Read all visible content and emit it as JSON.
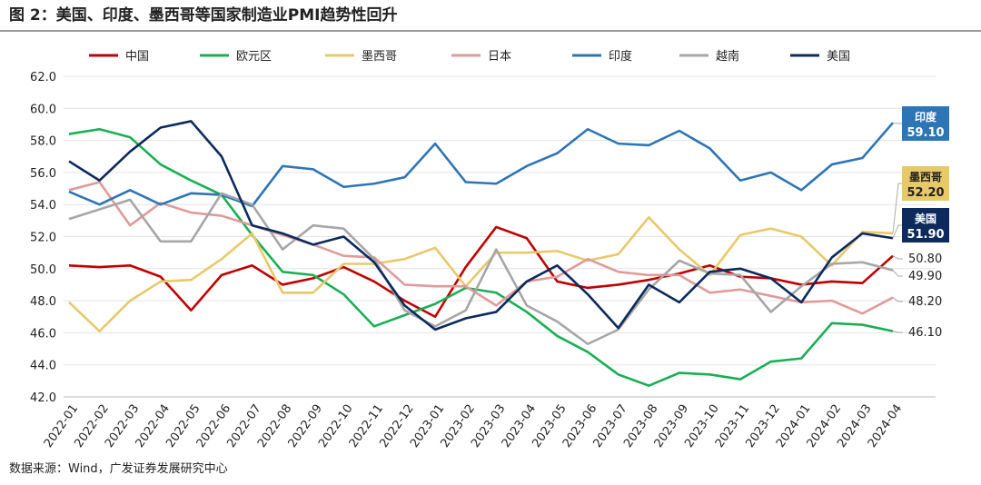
{
  "chart_data": {
    "type": "line",
    "title": "图 2：美国、印度、墨西哥等国家制造业PMI趋势性回升",
    "source": "数据来源：Wind，广发证券发展研究中心",
    "categories": [
      "2022-01",
      "2022-02",
      "2022-03",
      "2022-04",
      "2022-05",
      "2022-06",
      "2022-07",
      "2022-08",
      "2022-09",
      "2022-10",
      "2022-11",
      "2022-12",
      "2023-01",
      "2023-02",
      "2023-03",
      "2023-04",
      "2023-05",
      "2023-06",
      "2023-07",
      "2023-08",
      "2023-09",
      "2023-10",
      "2023-11",
      "2023-12",
      "2024-01",
      "2024-02",
      "2024-03",
      "2024-04"
    ],
    "ylim": [
      42,
      62
    ],
    "yticks": [
      {
        "value": 42,
        "label": "42.0"
      },
      {
        "value": 44,
        "label": "44.0"
      },
      {
        "value": 46,
        "label": "46.0"
      },
      {
        "value": 48,
        "label": "48.0"
      },
      {
        "value": 50,
        "label": "50.0"
      },
      {
        "value": 52,
        "label": "52.0"
      },
      {
        "value": 54,
        "label": "54.0"
      },
      {
        "value": 56,
        "label": "56.0"
      },
      {
        "value": 58,
        "label": "58.0"
      },
      {
        "value": 60,
        "label": "60.0"
      },
      {
        "value": 62,
        "label": "62.0"
      }
    ],
    "grid": true,
    "series": [
      {
        "name": "中国",
        "color": "#c00000",
        "label_style": "text",
        "values": [
          50.2,
          50.1,
          50.2,
          49.5,
          47.4,
          49.6,
          50.2,
          49.0,
          49.4,
          50.1,
          49.2,
          48.0,
          47.0,
          50.1,
          52.6,
          51.9,
          49.2,
          48.8,
          49.0,
          49.3,
          49.7,
          50.2,
          49.5,
          49.4,
          49.0,
          49.2,
          49.1,
          50.8
        ],
        "value_labels": [
          null,
          null,
          null,
          null,
          null,
          null,
          null,
          null,
          null,
          null,
          null,
          null,
          null,
          null,
          null,
          null,
          null,
          null,
          null,
          null,
          null,
          null,
          null,
          null,
          null,
          null,
          null,
          "50.80"
        ]
      },
      {
        "name": "欧元区",
        "color": "#1aaf54",
        "label_style": "text",
        "values": [
          58.4,
          58.7,
          58.2,
          56.5,
          55.5,
          54.6,
          52.1,
          49.8,
          49.6,
          48.4,
          46.4,
          47.1,
          47.8,
          48.8,
          48.5,
          47.3,
          45.8,
          44.8,
          43.4,
          42.7,
          43.5,
          43.4,
          43.1,
          44.2,
          44.4,
          46.6,
          46.5,
          46.1
        ],
        "value_labels": [
          null,
          null,
          null,
          null,
          null,
          null,
          null,
          null,
          null,
          null,
          null,
          null,
          null,
          null,
          null,
          null,
          null,
          null,
          null,
          null,
          null,
          null,
          null,
          null,
          null,
          null,
          null,
          "46.10"
        ]
      },
      {
        "name": "墨西哥",
        "color": "#e8c96a",
        "label_style": "box",
        "values": [
          47.9,
          46.1,
          48.0,
          49.2,
          49.3,
          50.6,
          52.2,
          48.5,
          48.5,
          50.3,
          50.3,
          50.6,
          51.3,
          48.9,
          51.0,
          51.0,
          51.1,
          50.5,
          50.9,
          53.2,
          51.2,
          49.6,
          52.1,
          52.5,
          52.0,
          50.2,
          52.3,
          52.2
        ],
        "value_labels": [
          null,
          null,
          null,
          null,
          null,
          null,
          null,
          null,
          null,
          null,
          null,
          null,
          null,
          null,
          null,
          null,
          null,
          null,
          null,
          null,
          null,
          null,
          null,
          null,
          null,
          null,
          null,
          "52.20"
        ]
      },
      {
        "name": "日本",
        "color": "#e09a9a",
        "label_style": "text",
        "values": [
          54.9,
          55.4,
          52.7,
          54.1,
          53.5,
          53.3,
          52.7,
          52.1,
          51.5,
          50.8,
          50.7,
          49.0,
          48.9,
          48.9,
          47.7,
          49.2,
          49.5,
          50.6,
          49.8,
          49.6,
          49.6,
          48.5,
          48.7,
          48.3,
          47.9,
          48.0,
          47.2,
          48.2
        ],
        "value_labels": [
          null,
          null,
          null,
          null,
          null,
          null,
          null,
          null,
          null,
          null,
          null,
          null,
          null,
          null,
          null,
          null,
          null,
          null,
          null,
          null,
          null,
          null,
          null,
          null,
          null,
          null,
          null,
          "48.20"
        ]
      },
      {
        "name": "印度",
        "color": "#2e75b6",
        "label_style": "box",
        "values": [
          54.8,
          54.0,
          54.9,
          54.0,
          54.7,
          54.6,
          53.9,
          56.4,
          56.2,
          55.1,
          55.3,
          55.7,
          57.8,
          55.4,
          55.3,
          56.4,
          57.2,
          58.7,
          57.8,
          57.7,
          58.6,
          57.5,
          55.5,
          56.0,
          54.9,
          56.5,
          56.9,
          59.1
        ],
        "value_labels": [
          null,
          null,
          null,
          null,
          null,
          null,
          null,
          null,
          null,
          null,
          null,
          null,
          null,
          null,
          null,
          null,
          null,
          null,
          null,
          null,
          null,
          null,
          null,
          null,
          null,
          null,
          null,
          "59.10"
        ]
      },
      {
        "name": "越南",
        "color": "#a6a6a6",
        "label_style": "text",
        "values": [
          53.1,
          53.7,
          54.3,
          51.7,
          51.7,
          54.7,
          54.0,
          51.2,
          52.7,
          52.5,
          50.6,
          47.4,
          46.4,
          47.4,
          51.2,
          47.7,
          46.7,
          45.3,
          46.2,
          48.7,
          50.5,
          49.7,
          49.6,
          47.3,
          48.9,
          50.3,
          50.4,
          49.9
        ],
        "value_labels": [
          null,
          null,
          null,
          null,
          null,
          null,
          null,
          null,
          null,
          null,
          null,
          null,
          null,
          null,
          null,
          null,
          null,
          null,
          null,
          null,
          null,
          null,
          null,
          null,
          null,
          null,
          null,
          "49.90"
        ]
      },
      {
        "name": "美国",
        "color": "#0c2a5c",
        "label_style": "box",
        "values": [
          56.7,
          55.5,
          57.3,
          58.8,
          59.2,
          57.0,
          52.7,
          52.2,
          51.5,
          52.0,
          50.4,
          47.7,
          46.2,
          46.9,
          47.3,
          49.2,
          50.2,
          48.4,
          46.3,
          49.0,
          47.9,
          49.8,
          50.0,
          49.4,
          47.9,
          50.7,
          52.2,
          51.9
        ],
        "value_labels": [
          null,
          null,
          null,
          null,
          null,
          null,
          null,
          null,
          null,
          null,
          null,
          null,
          null,
          null,
          null,
          null,
          null,
          null,
          null,
          null,
          null,
          null,
          null,
          null,
          null,
          null,
          null,
          "51.90"
        ]
      }
    ]
  }
}
